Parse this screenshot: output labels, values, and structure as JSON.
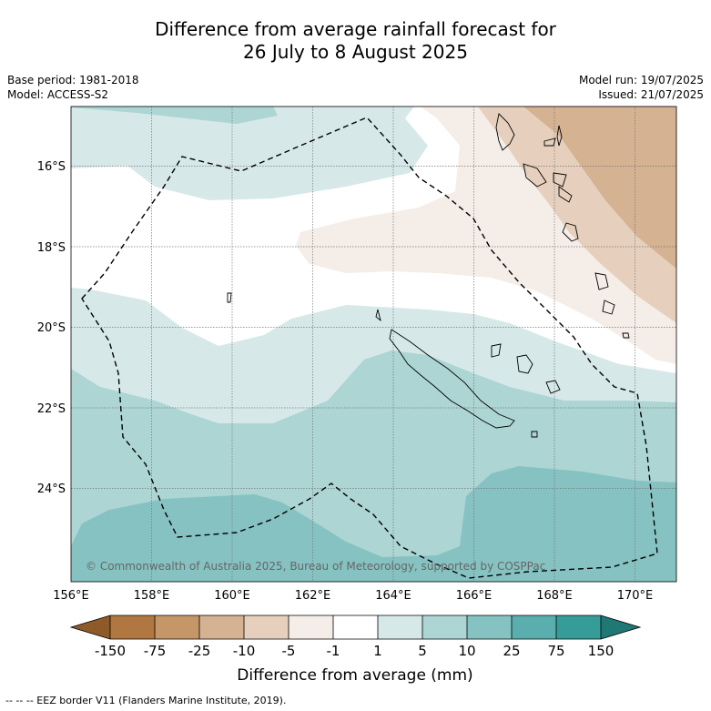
{
  "title_line1": "Difference from average rainfall forecast for",
  "title_line2": "26 July to 8 August 2025",
  "meta": {
    "base_period": "Base period: 1981-2018",
    "model": "Model: ACCESS-S2",
    "model_run": "Model run: 19/07/2025",
    "issued": "Issued: 21/07/2025"
  },
  "map": {
    "lat_labels": [
      "16°S",
      "18°S",
      "20°S",
      "22°S",
      "24°S"
    ],
    "lon_labels": [
      "156°E",
      "158°E",
      "160°E",
      "162°E",
      "164°E",
      "166°E",
      "168°E",
      "170°E"
    ],
    "copyright": "© Commonwealth of Australia 2025, Bureau of Meteorology, supported by COSPPac"
  },
  "colorbar": {
    "label": "Difference from average (mm)",
    "tick_labels": [
      "-150",
      "-75",
      "-25",
      "-10",
      "-5",
      "-1",
      "1",
      "5",
      "10",
      "25",
      "75",
      "150"
    ],
    "colors": {
      "lt_-150": "#8f5a2a",
      "-150_-75": "#b07840",
      "-75_-25": "#c49668",
      "-25_-10": "#d4b292",
      "-10_-5": "#e6d0bd",
      "-5_-1": "#f5ede7",
      "-1_1": "#ffffff",
      "1_5": "#d6e9e8",
      "5_10": "#acd5d4",
      "10_25": "#86c2c1",
      "25_75": "#5aaeae",
      "75_150": "#369c98",
      "gt_150": "#1f7874"
    }
  },
  "footer": "--  --  -- EEZ border V11 (Flanders Marine Institute, 2019)."
}
